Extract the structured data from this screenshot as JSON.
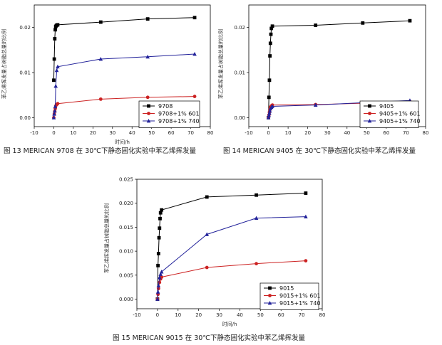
{
  "chart_data": [
    {
      "type": "line",
      "caption": "图 13 MERICAN 9708 在 30℃下静态固化实验中苯乙烯挥发量",
      "ylabel": "苯乙烯挥发量占树脂总量的比例",
      "xlabel": "时间/h",
      "xlim": [
        -10,
        80
      ],
      "ylim": [
        -0.002,
        0.025
      ],
      "xticks": [
        "-10",
        "0",
        "10",
        "20",
        "30",
        "40",
        "50",
        "60",
        "70",
        "80"
      ],
      "yticks": [
        "0.00",
        "0.01",
        "0.02"
      ],
      "legend_position": "bottom-right",
      "series": [
        {
          "name": "9708",
          "color": "#000000",
          "marker": "square",
          "x": [
            0,
            0.25,
            0.5,
            0.75,
            1,
            1.25,
            1.5,
            2,
            24,
            48,
            72
          ],
          "y": [
            0.0083,
            0.013,
            0.0175,
            0.0195,
            0.0202,
            0.0204,
            0.0205,
            0.0206,
            0.0212,
            0.0219,
            0.0222
          ]
        },
        {
          "name": "9708+1% 601",
          "color": "#cc2222",
          "marker": "circle",
          "x": [
            0,
            0.25,
            0.5,
            0.75,
            1,
            1.5,
            2,
            24,
            48,
            72
          ],
          "y": [
            0.0,
            0.0008,
            0.0014,
            0.002,
            0.0026,
            0.0029,
            0.0031,
            0.0041,
            0.0045,
            0.0047
          ]
        },
        {
          "name": "9708+1% 740",
          "color": "#22229a",
          "marker": "triangle",
          "x": [
            0,
            0.25,
            0.5,
            0.75,
            1,
            1.5,
            2,
            24,
            48,
            72
          ],
          "y": [
            0.0,
            0.0008,
            0.0015,
            0.0025,
            0.007,
            0.0105,
            0.0113,
            0.013,
            0.0135,
            0.0141
          ]
        }
      ]
    },
    {
      "type": "line",
      "caption": "图 14 MERICAN 9405 在 30℃下静态固化实验中苯乙烯挥发量",
      "ylabel": "苯乙烯挥发量占树脂总量的比例",
      "xlabel": "",
      "xlim": [
        -10,
        80
      ],
      "ylim": [
        -0.002,
        0.025
      ],
      "xticks": [
        "-10",
        "0",
        "10",
        "20",
        "30",
        "40",
        "50",
        "60",
        "70",
        "80"
      ],
      "yticks": [
        "0.00",
        "0.01",
        "0.02"
      ],
      "legend_position": "bottom-right",
      "series": [
        {
          "name": "9405",
          "color": "#000000",
          "marker": "square",
          "x": [
            0,
            0.25,
            0.5,
            0.75,
            1,
            1.25,
            1.5,
            2,
            24,
            48,
            72
          ],
          "y": [
            0.0,
            0.0045,
            0.0083,
            0.0137,
            0.0165,
            0.0185,
            0.0198,
            0.0203,
            0.0205,
            0.021,
            0.0215
          ]
        },
        {
          "name": "9405+1% 601",
          "color": "#cc2222",
          "marker": "circle",
          "x": [
            0,
            0.25,
            0.5,
            0.75,
            1,
            1.5,
            2,
            24,
            48,
            72
          ],
          "y": [
            0.0,
            0.0006,
            0.0012,
            0.0018,
            0.0023,
            0.0026,
            0.0028,
            0.0029,
            0.0032,
            0.0036
          ]
        },
        {
          "name": "9405+1% 740",
          "color": "#22229a",
          "marker": "triangle",
          "x": [
            0,
            0.25,
            0.5,
            0.75,
            1,
            1.5,
            2,
            24,
            48,
            72
          ],
          "y": [
            0.0,
            0.0005,
            0.001,
            0.0015,
            0.002,
            0.0023,
            0.0025,
            0.0028,
            0.0033,
            0.0038
          ]
        }
      ]
    },
    {
      "type": "line",
      "caption": "图 15 MERICAN 9015 在 30℃下静态固化实验中苯乙烯挥发量",
      "ylabel": "苯乙烯挥发量占树脂总量的比例",
      "xlabel": "时间/h",
      "xlim": [
        -10,
        80
      ],
      "ylim": [
        -0.002,
        0.025
      ],
      "xticks": [
        "-10",
        "0",
        "10",
        "20",
        "30",
        "40",
        "50",
        "60",
        "70",
        "80"
      ],
      "yticks": [
        "0.000",
        "0.005",
        "0.010",
        "0.015",
        "0.020",
        "0.025"
      ],
      "legend_position": "bottom-right",
      "series": [
        {
          "name": "9015",
          "color": "#000000",
          "marker": "square",
          "x": [
            0,
            0.25,
            0.5,
            0.75,
            1,
            1.25,
            1.5,
            2,
            24,
            48,
            72
          ],
          "y": [
            0.0,
            0.007,
            0.0095,
            0.0128,
            0.0148,
            0.0168,
            0.018,
            0.0186,
            0.0213,
            0.0217,
            0.0221
          ]
        },
        {
          "name": "9015+1% 601",
          "color": "#cc2222",
          "marker": "circle",
          "x": [
            0,
            0.25,
            0.5,
            1,
            1.5,
            2,
            24,
            48,
            72
          ],
          "y": [
            0.0,
            0.001,
            0.0022,
            0.0035,
            0.0042,
            0.0046,
            0.0066,
            0.0074,
            0.008
          ]
        },
        {
          "name": "9015+1% 740",
          "color": "#22229a",
          "marker": "triangle",
          "x": [
            0,
            0.25,
            0.5,
            1,
            1.5,
            2,
            24,
            48,
            72
          ],
          "y": [
            0.0,
            0.0015,
            0.0028,
            0.0045,
            0.0052,
            0.0057,
            0.0135,
            0.0169,
            0.0172
          ]
        }
      ]
    }
  ]
}
